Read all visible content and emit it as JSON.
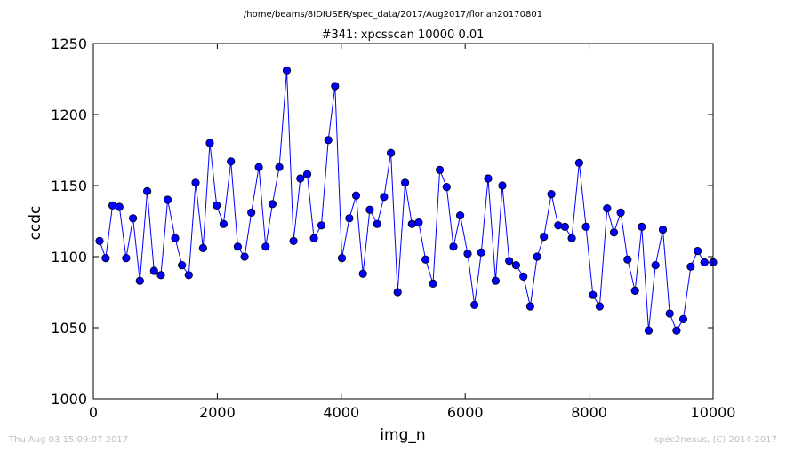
{
  "page": {
    "filepath": "/home/beams/8IDIUSER/spec_data/2017/Aug2017/florian20170801",
    "footer_left": "Thu Aug 03 15:09:07 2017",
    "footer_right": "spec2nexus, (C) 2014-2017"
  },
  "chart_data": {
    "type": "line",
    "title": "#341: xpcsscan 10000 0.01",
    "xlabel": "img_n",
    "ylabel": "ccdc",
    "xlim": [
      0,
      10000
    ],
    "ylim": [
      1000,
      1250
    ],
    "xticks": [
      0,
      2000,
      4000,
      6000,
      8000,
      10000
    ],
    "yticks": [
      1000,
      1050,
      1100,
      1150,
      1200,
      1250
    ],
    "marker": "circle",
    "colors": {
      "line": "#0000ff",
      "marker_fill": "#0000ff",
      "marker_edge": "#000000"
    },
    "x": [
      100,
      200,
      310,
      420,
      530,
      640,
      750,
      870,
      980,
      1090,
      1200,
      1320,
      1430,
      1540,
      1650,
      1770,
      1880,
      1990,
      2100,
      2220,
      2330,
      2440,
      2550,
      2670,
      2780,
      2890,
      3000,
      3120,
      3230,
      3340,
      3450,
      3560,
      3680,
      3790,
      3900,
      4010,
      4130,
      4240,
      4350,
      4460,
      4580,
      4690,
      4800,
      4910,
      5030,
      5140,
      5250,
      5360,
      5480,
      5590,
      5700,
      5810,
      5920,
      6040,
      6150,
      6260,
      6370,
      6490,
      6600,
      6710,
      6820,
      6940,
      7050,
      7160,
      7270,
      7390,
      7500,
      7610,
      7720,
      7840,
      7950,
      8060,
      8170,
      8290,
      8400,
      8510,
      8620,
      8740,
      8850,
      8960,
      9070,
      9190,
      9300,
      9410,
      9520,
      9640,
      9750,
      9860,
      10000
    ],
    "series": [
      {
        "values": [
          1111,
          1099,
          1136,
          1135,
          1099,
          1127,
          1083,
          1146,
          1090,
          1087,
          1140,
          1113,
          1094,
          1087,
          1152,
          1106,
          1180,
          1136,
          1123,
          1167,
          1107,
          1100,
          1131,
          1163,
          1107,
          1137,
          1163,
          1231,
          1111,
          1155,
          1158,
          1113,
          1122,
          1182,
          1220,
          1099,
          1127,
          1143,
          1088,
          1133,
          1123,
          1142,
          1173,
          1075,
          1152,
          1123,
          1124,
          1098,
          1081,
          1161,
          1149,
          1107,
          1129,
          1102,
          1066,
          1103,
          1155,
          1083,
          1150,
          1097,
          1094,
          1086,
          1065,
          1100,
          1114,
          1144,
          1122,
          1121,
          1113,
          1166,
          1121,
          1073,
          1065,
          1134,
          1117,
          1131,
          1098,
          1076,
          1121,
          1048,
          1094,
          1119,
          1060,
          1048,
          1056,
          1093,
          1104,
          1096,
          1096
        ]
      }
    ]
  }
}
